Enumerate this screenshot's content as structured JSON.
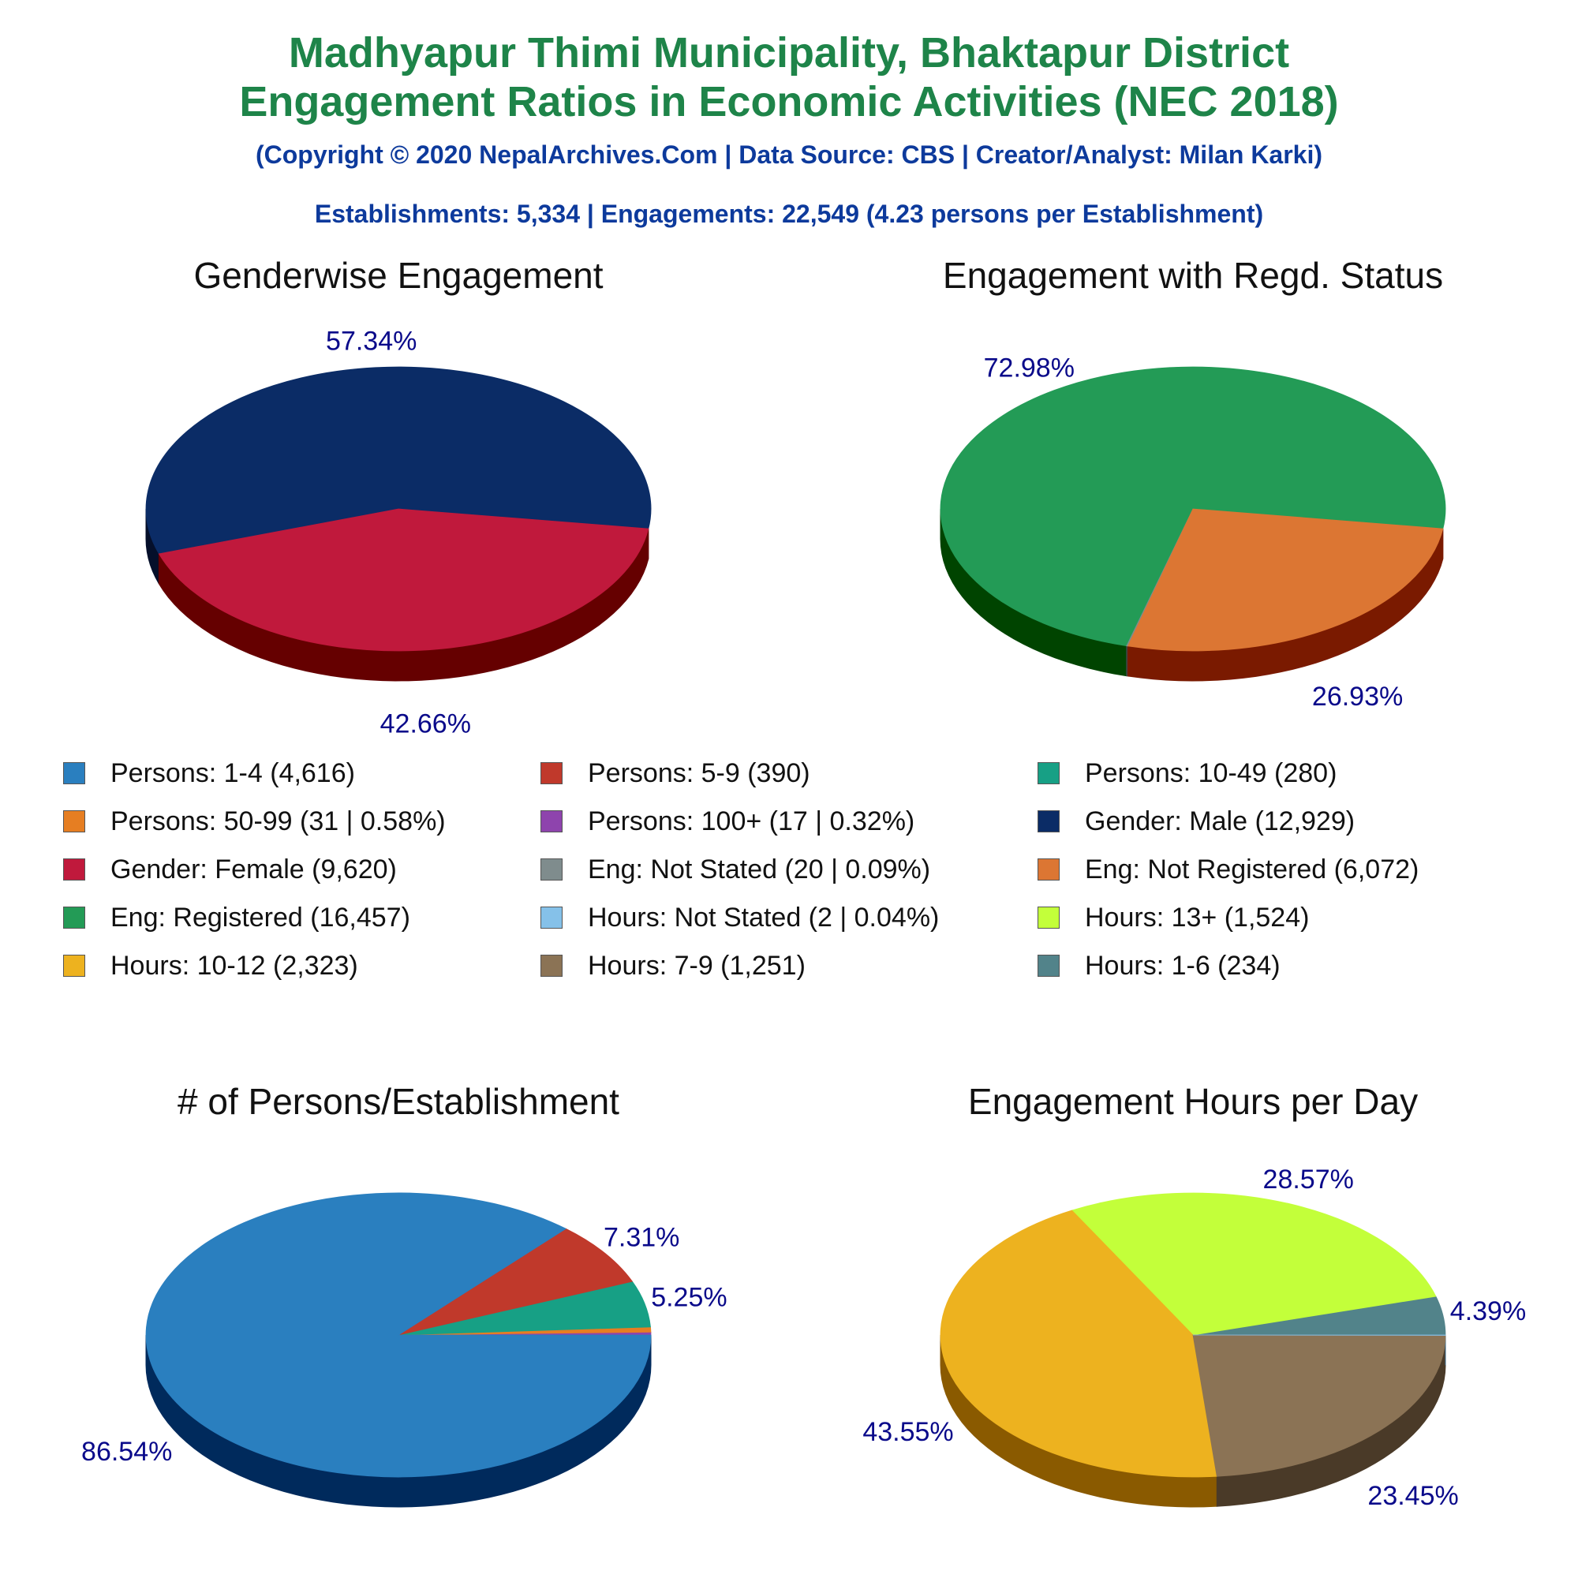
{
  "header": {
    "title_line1": "Madhyapur Thimi Municipality, Bhaktapur District",
    "title_line2": "Engagement Ratios in Economic Activities (NEC 2018)",
    "subtitle": "(Copyright © 2020 NepalArchives.Com | Data Source: CBS | Creator/Analyst: Milan Karki)",
    "stats": "Establishments: 5,334 | Engagements: 22,549 (4.23 persons per Establishment)"
  },
  "legend": [
    {
      "label": "Persons: 1-4 (4,616)",
      "color": "#2a7fbf"
    },
    {
      "label": "Persons: 5-9 (390)",
      "color": "#c0392b"
    },
    {
      "label": "Persons: 10-49 (280)",
      "color": "#17a085"
    },
    {
      "label": "Persons: 50-99 (31 | 0.58%)",
      "color": "#e67e22"
    },
    {
      "label": "Persons: 100+ (17 | 0.32%)",
      "color": "#8e44ad"
    },
    {
      "label": "Gender: Male (12,929)",
      "color": "#0b2c66"
    },
    {
      "label": "Gender: Female (9,620)",
      "color": "#c0193c"
    },
    {
      "label": "Eng: Not Stated (20 | 0.09%)",
      "color": "#7f8c8d"
    },
    {
      "label": "Eng: Not Registered (6,072)",
      "color": "#dc7633"
    },
    {
      "label": "Eng: Registered (16,457)",
      "color": "#239b56"
    },
    {
      "label": "Hours: Not Stated (2 | 0.04%)",
      "color": "#85c1e9"
    },
    {
      "label": "Hours: 13+ (1,524)",
      "color": "#c3ff3a"
    },
    {
      "label": "Hours: 10-12 (2,323)",
      "color": "#edb21f"
    },
    {
      "label": "Hours: 7-9 (1,251)",
      "color": "#8b7355"
    },
    {
      "label": "Hours: 1-6 (234)",
      "color": "#52838a"
    }
  ],
  "chart_data": [
    {
      "type": "pie",
      "title": "Genderwise Engagement",
      "start_angle_deg": 352,
      "slices": [
        {
          "name": "Gender: Male",
          "value": 12929,
          "label": "57.34%",
          "color": "#0b2c66",
          "side": "#050f2a"
        },
        {
          "name": "Gender: Female",
          "value": 9620,
          "label": "42.66%",
          "color": "#c0193c",
          "side": "#650000"
        }
      ]
    },
    {
      "type": "pie",
      "title": "Engagement with Regd. Status",
      "start_angle_deg": 352,
      "slices": [
        {
          "name": "Eng: Registered",
          "value": 16457,
          "label": "72.98%",
          "color": "#239b56",
          "side": "#004400"
        },
        {
          "name": "Eng: Not Stated",
          "value": 20,
          "label": "",
          "color": "#7f8c8d",
          "side": "#404646"
        },
        {
          "name": "Eng: Not Registered",
          "value": 6072,
          "label": "26.93%",
          "color": "#dc7633",
          "side": "#7a1a00"
        }
      ]
    },
    {
      "type": "pie",
      "title": "# of Persons/Establishment",
      "start_angle_deg": 0,
      "slices": [
        {
          "name": "Persons: 100+",
          "value": 17,
          "label": "",
          "color": "#8e44ad",
          "side": "#4a1a5c"
        },
        {
          "name": "Persons: 50-99",
          "value": 31,
          "label": "",
          "color": "#e67e22",
          "side": "#7a3a00"
        },
        {
          "name": "Persons: 10-49",
          "value": 280,
          "label": "5.25%",
          "color": "#17a085",
          "side": "#004a30"
        },
        {
          "name": "Persons: 5-9",
          "value": 390,
          "label": "7.31%",
          "color": "#c0392b",
          "side": "#650000"
        },
        {
          "name": "Persons: 1-4",
          "value": 4616,
          "label": "86.54%",
          "color": "#2a7fbf",
          "side": "#002a5c"
        }
      ]
    },
    {
      "type": "pie",
      "title": "Engagement Hours per Day",
      "start_angle_deg": 0,
      "slices": [
        {
          "name": "Hours: 1-6",
          "value": 234,
          "label": "4.39%",
          "color": "#52838a",
          "side": "#244a50"
        },
        {
          "name": "Hours: 13+",
          "value": 1524,
          "label": "28.57%",
          "color": "#c3ff3a",
          "side": "#5fa000"
        },
        {
          "name": "Hours: 10-12",
          "value": 2323,
          "label": "43.55%",
          "color": "#edb21f",
          "side": "#8a5a00"
        },
        {
          "name": "Hours: 7-9",
          "value": 1251,
          "label": "23.45%",
          "color": "#8b7355",
          "side": "#4a3a28"
        },
        {
          "name": "Hours: Not Stated",
          "value": 2,
          "label": "",
          "color": "#85c1e9",
          "side": "#3a6a8a"
        }
      ]
    }
  ]
}
